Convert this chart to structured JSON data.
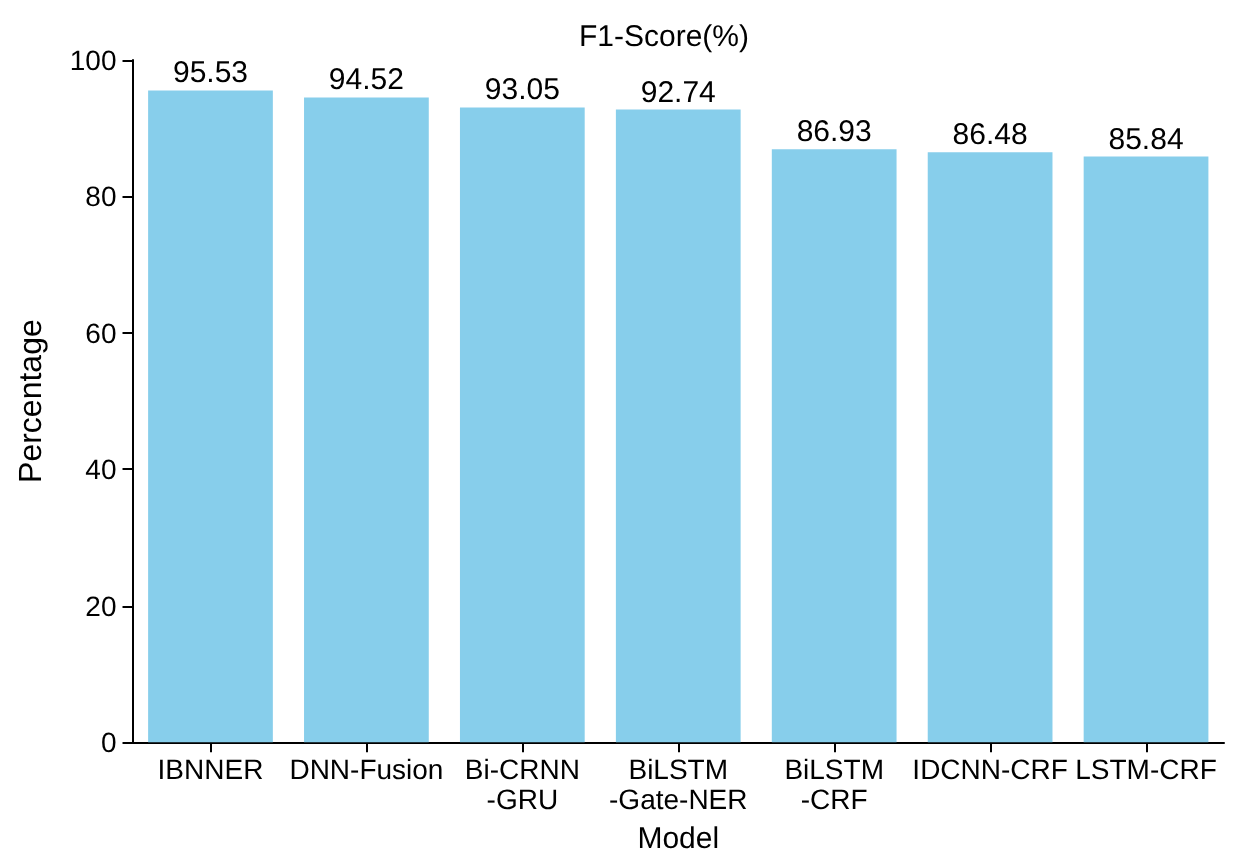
{
  "chart_data": {
    "type": "bar",
    "title": "F1-Score(%)",
    "xlabel": "Model",
    "ylabel": "Percentage",
    "categories": [
      "IBNNER",
      "DNN-Fusion",
      "Bi-CRNN\n-GRU",
      "BiLSTM\n-Gate-NER",
      "BiLSTM\n-CRF",
      "IDCNN-CRF",
      "LSTM-CRF"
    ],
    "values": [
      95.53,
      94.52,
      93.05,
      92.74,
      86.93,
      86.48,
      85.84
    ],
    "color": "#87ceeb",
    "ylim": [
      0,
      100
    ],
    "yticks": [
      0,
      20,
      40,
      60,
      80,
      100
    ],
    "grid": false,
    "data_labels": true
  }
}
